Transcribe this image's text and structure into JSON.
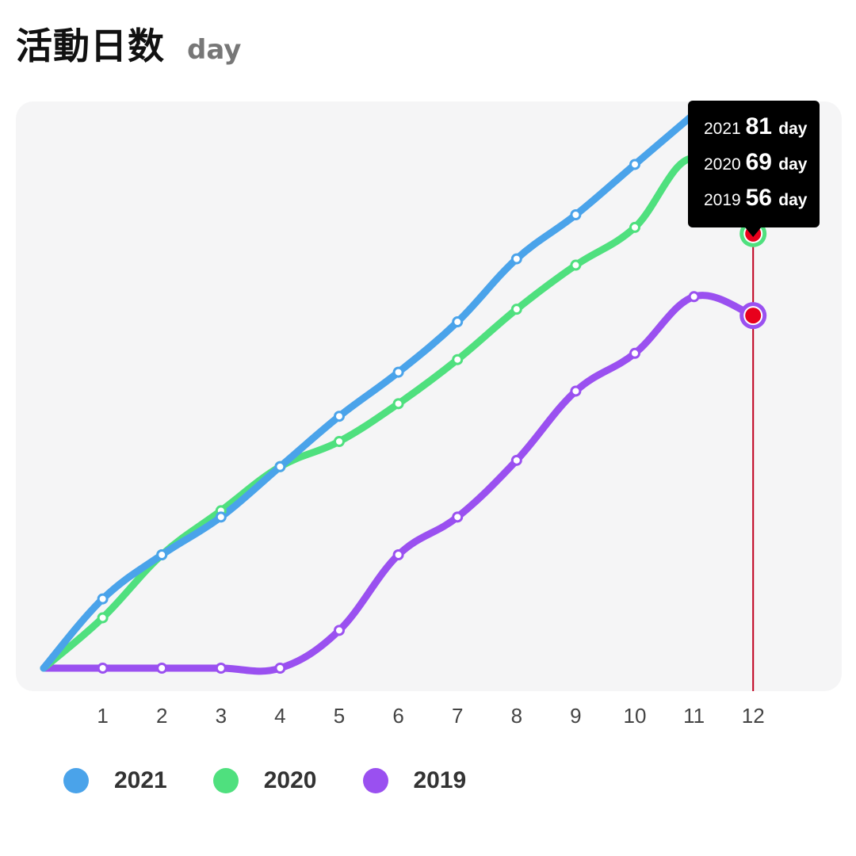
{
  "header": {
    "title": "活動日数",
    "unit": "day"
  },
  "chart_data": {
    "type": "line",
    "title": "活動日数",
    "y_unit": "day",
    "x": [
      0,
      1,
      2,
      3,
      4,
      5,
      6,
      7,
      8,
      9,
      10,
      11,
      12
    ],
    "x_tick_labels": [
      "1",
      "2",
      "3",
      "4",
      "5",
      "6",
      "7",
      "8",
      "9",
      "10",
      "11",
      "12"
    ],
    "ylim": [
      0,
      90
    ],
    "grid": false,
    "legend_position": "bottom",
    "series": [
      {
        "name": "2021",
        "color": "#4aa3ea",
        "values": [
          0,
          11,
          18,
          24,
          32,
          40,
          47,
          55,
          65,
          72,
          80,
          88,
          null
        ]
      },
      {
        "name": "2020",
        "color": "#4fe07e",
        "values": [
          0,
          8,
          18,
          25,
          32,
          36,
          42,
          49,
          57,
          64,
          70,
          81,
          69
        ]
      },
      {
        "name": "2019",
        "color": "#9a50f0",
        "values": [
          0,
          0,
          0,
          0,
          0,
          6,
          18,
          24,
          33,
          44,
          50,
          59,
          56
        ]
      }
    ],
    "highlight": {
      "x": 12,
      "marker_color": "#e8001c",
      "rows": [
        {
          "year": "2021",
          "value": "81",
          "unit": "day"
        },
        {
          "year": "2020",
          "value": "69",
          "unit": "day"
        },
        {
          "year": "2019",
          "value": "56",
          "unit": "day"
        }
      ]
    }
  }
}
